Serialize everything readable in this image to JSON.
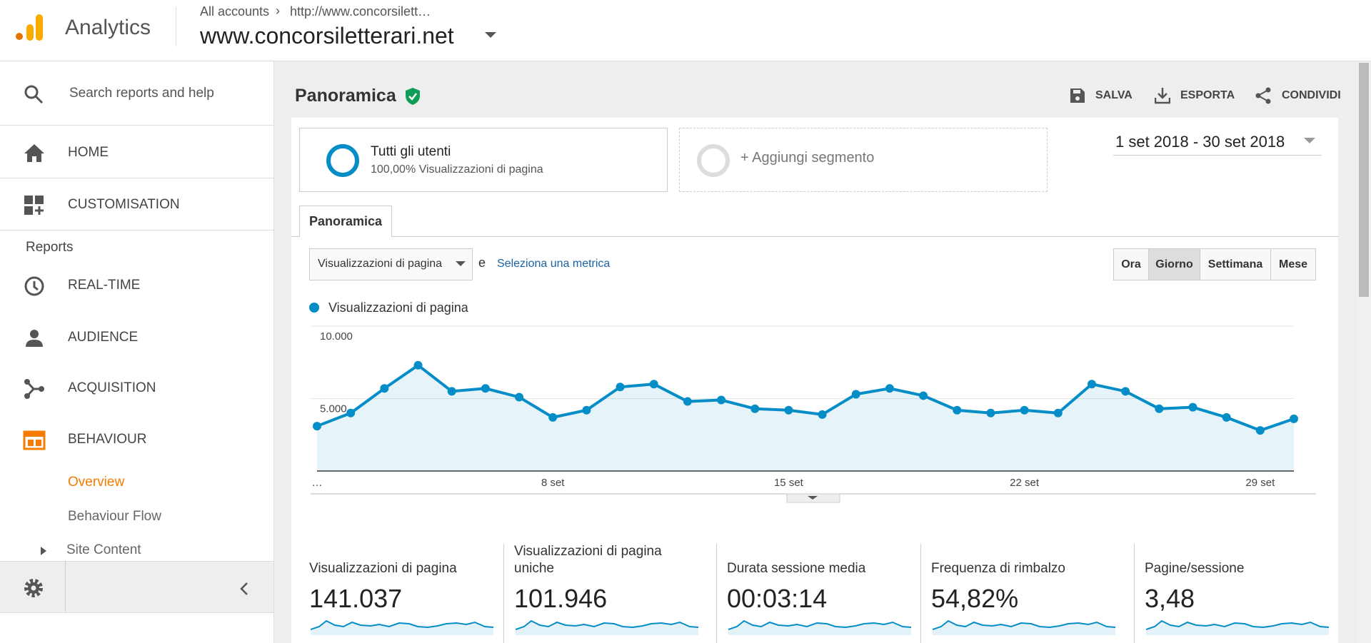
{
  "header": {
    "app": "Analytics",
    "breadcrumb": [
      "All accounts",
      "http://www.concorsilett…"
    ],
    "property": "www.concorsiletterari.net"
  },
  "sidebar": {
    "search": "Search reports and help",
    "home": "HOME",
    "customisation": "CUSTOMISATION",
    "reports": "Reports",
    "items": [
      "REAL-TIME",
      "AUDIENCE",
      "ACQUISITION",
      "BEHAVIOUR"
    ],
    "behaviour_items": [
      "Overview",
      "Behaviour Flow",
      "Site Content"
    ]
  },
  "page": {
    "title": "Panoramica",
    "actions": [
      "SALVA",
      "ESPORTA",
      "CONDIVIDI"
    ],
    "segment": {
      "name": "Tutti gli utenti",
      "detail": "100,00% Visualizzazioni di pagina"
    },
    "add_segment": "+ Aggiungi segmento",
    "date_range": "1 set 2018 - 30 set 2018",
    "tab": "Panoramica",
    "metric_select": "Visualizzazioni di pagina",
    "conjunction": "e",
    "select_metric": "Seleziona una metrica",
    "granularity": [
      "Ora",
      "Giorno",
      "Settimana",
      "Mese"
    ]
  },
  "chart_data": {
    "type": "line",
    "categories": [
      "…",
      null,
      null,
      null,
      null,
      null,
      null,
      "8 set",
      null,
      null,
      null,
      null,
      null,
      null,
      "15 set",
      null,
      null,
      null,
      null,
      null,
      null,
      "22 set",
      null,
      null,
      null,
      null,
      null,
      null,
      "29 set",
      null
    ],
    "series": [
      {
        "name": "Visualizzazioni di pagina",
        "color": "#058dc7",
        "values": [
          3100,
          4000,
          5700,
          7300,
          5500,
          5700,
          5100,
          3700,
          4200,
          5800,
          6000,
          4800,
          4900,
          4300,
          4200,
          3900,
          5300,
          5700,
          5200,
          4200,
          4000,
          4200,
          4000,
          6000,
          5500,
          4300,
          4400,
          3700,
          2800,
          3600
        ]
      }
    ],
    "ylim": [
      0,
      10000
    ],
    "yticks": [
      {
        "value": 5000,
        "label": "5.000"
      },
      {
        "value": 10000,
        "label": "10.000"
      }
    ],
    "grid": true,
    "area": true
  },
  "metrics": [
    {
      "label": "Visualizzazioni di pagina",
      "value": "141.037"
    },
    {
      "label": "Visualizzazioni di pagina uniche",
      "value": "101.946"
    },
    {
      "label": "Durata sessione media",
      "value": "00:03:14"
    },
    {
      "label": "Frequenza di rimbalzo",
      "value": "54,82%"
    },
    {
      "label": "Pagine/sessione",
      "value": "3,48"
    }
  ]
}
